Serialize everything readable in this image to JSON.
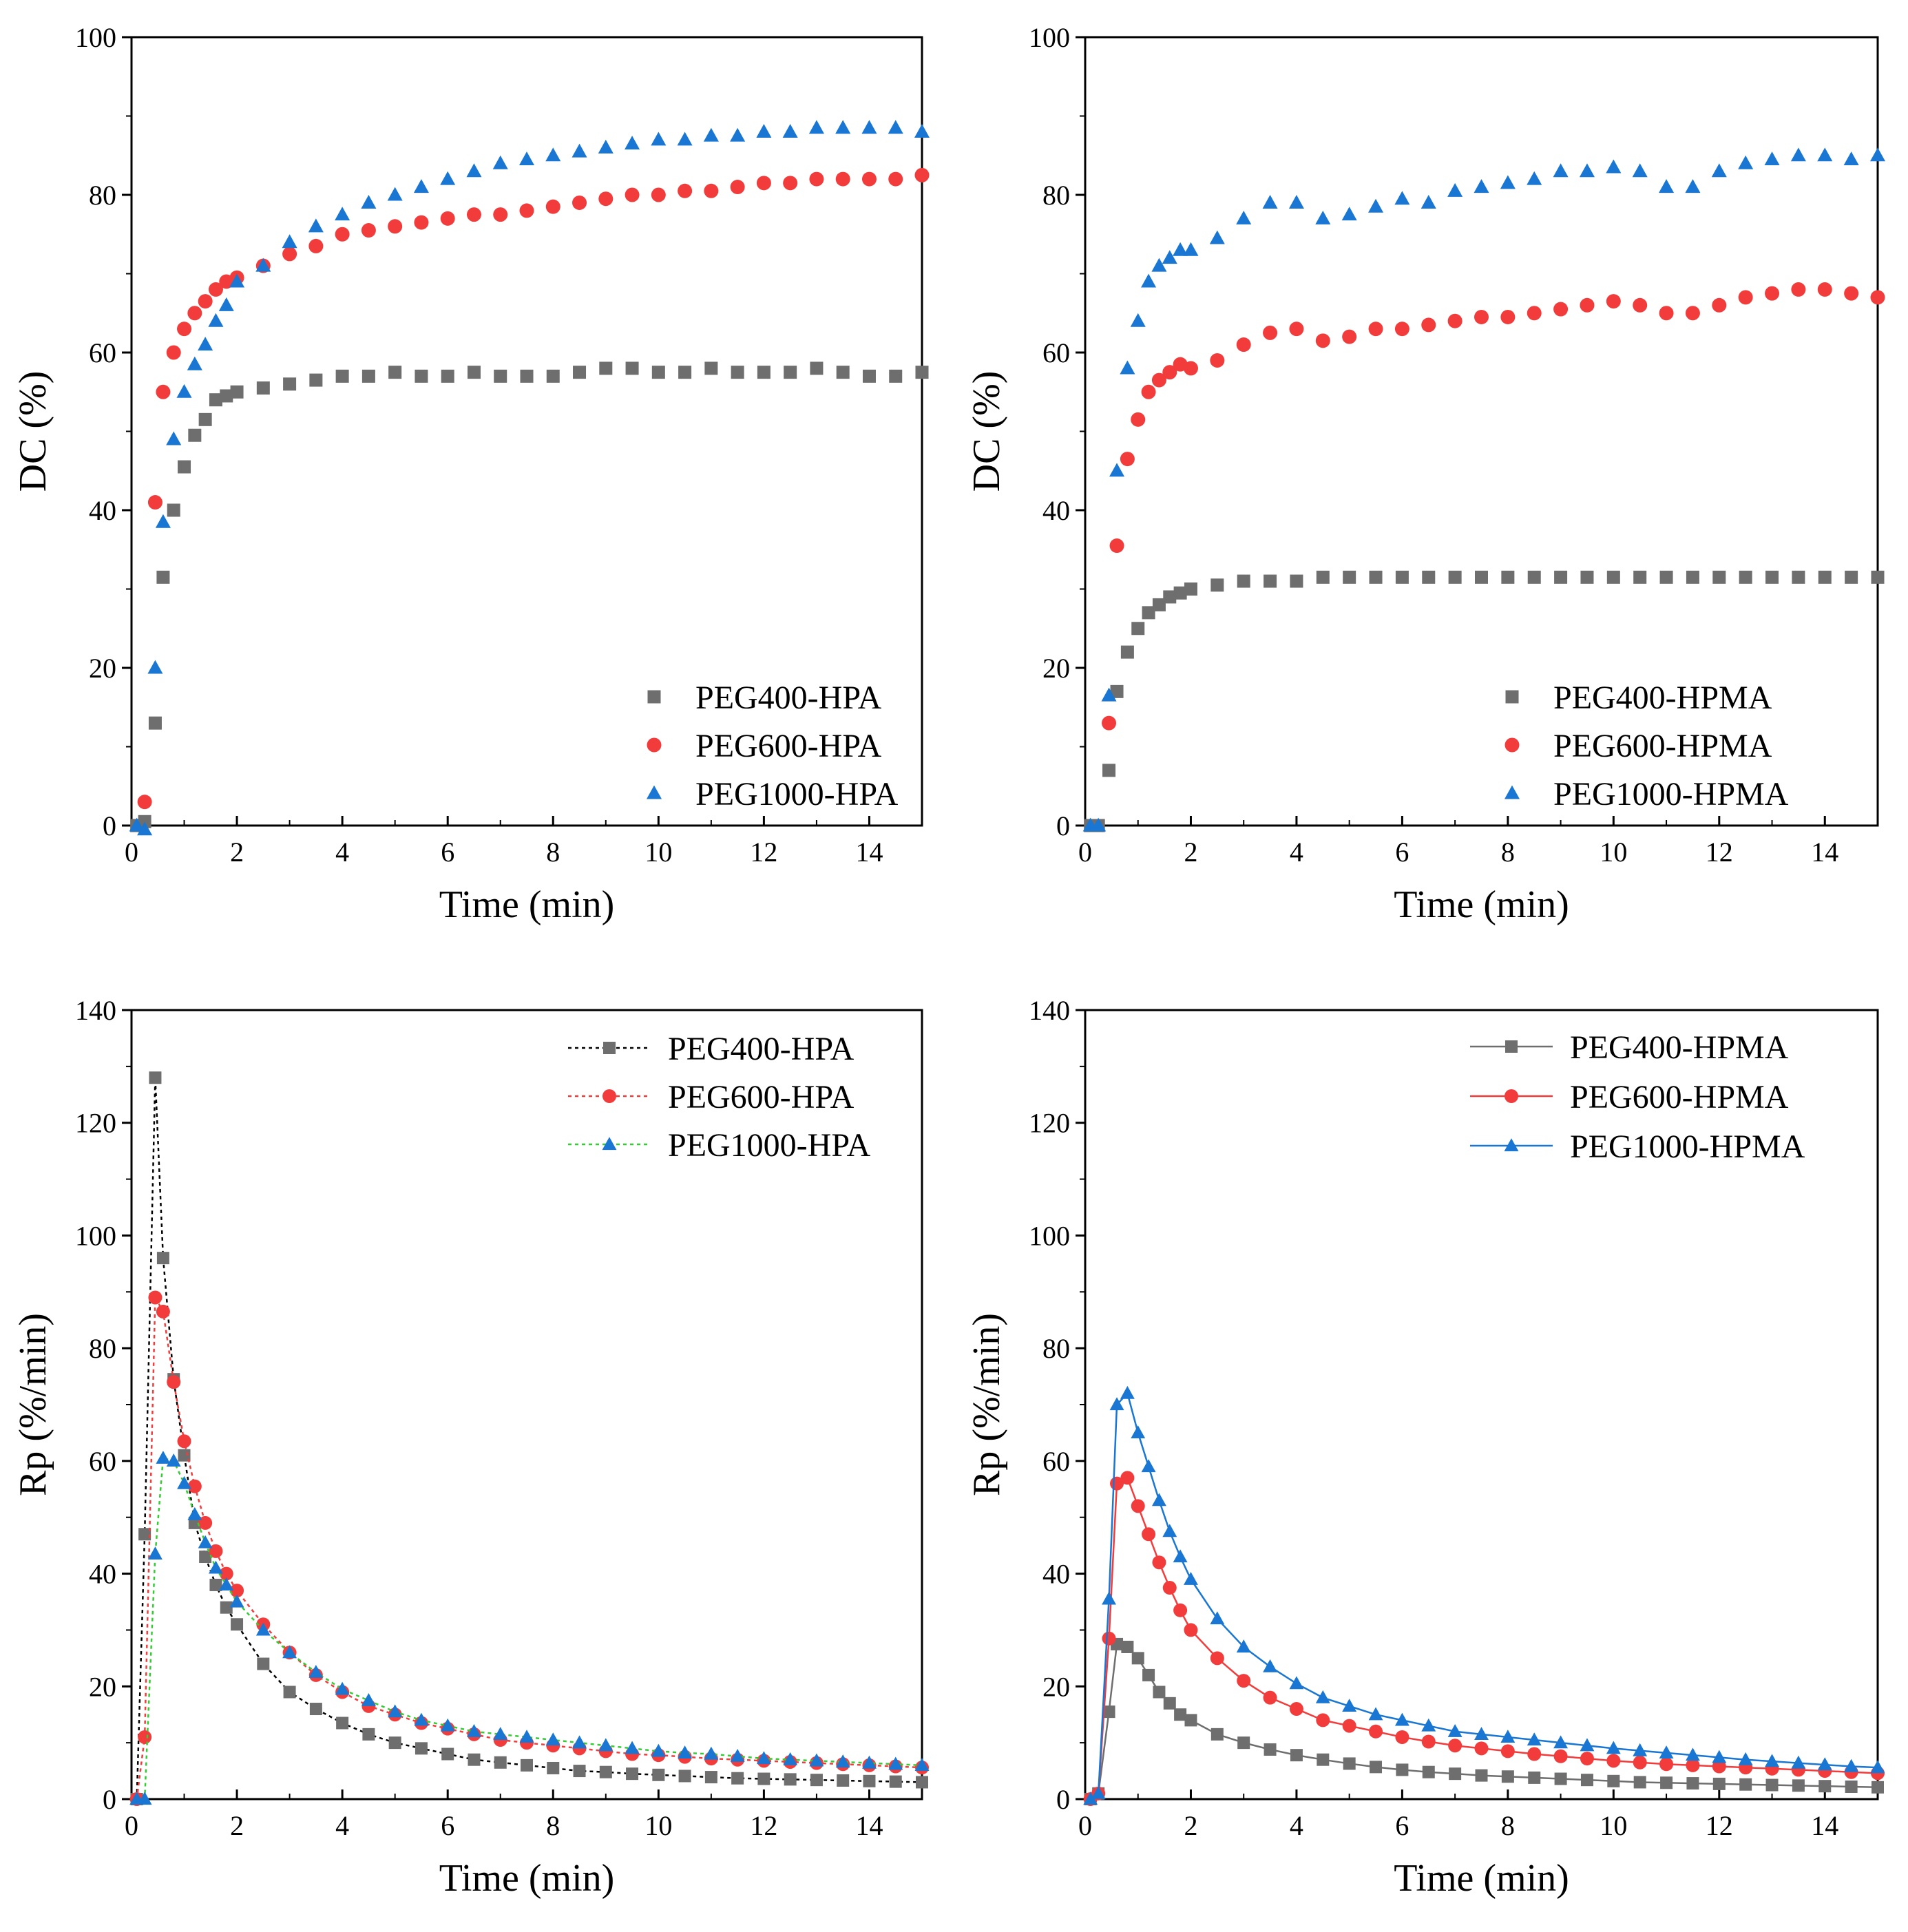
{
  "colors": {
    "peg400": "#6e6e6e",
    "peg600": "#f23c3c",
    "peg1000": "#1976d2",
    "peg1000_line_tl": "#33cc33",
    "axis": "#000000"
  },
  "chart_data": [
    {
      "id": "dc-hpa",
      "type": "scatter",
      "xlabel": "Time (min)",
      "ylabel": "DC (%)",
      "xlim": [
        0,
        15
      ],
      "ylim": [
        0,
        100
      ],
      "xticks": [
        0,
        2,
        4,
        6,
        8,
        10,
        12,
        14
      ],
      "yticks": [
        0,
        20,
        40,
        60,
        80,
        100
      ],
      "legend_position": "bottom-right",
      "series": [
        {
          "name": "PEG400-HPA",
          "marker": "square",
          "color": "#6e6e6e",
          "x": [
            0.1,
            0.25,
            0.45,
            0.6,
            0.8,
            1.0,
            1.2,
            1.4,
            1.6,
            1.8,
            2,
            2.5,
            3,
            3.5,
            4,
            4.5,
            5,
            5.5,
            6,
            6.5,
            7,
            7.5,
            8,
            8.5,
            9,
            9.5,
            10,
            10.5,
            11,
            11.5,
            12,
            12.5,
            13,
            13.5,
            14,
            14.5,
            15
          ],
          "y": [
            0,
            0.5,
            13,
            31.5,
            40,
            45.5,
            49.5,
            51.5,
            54,
            54.5,
            55,
            55.5,
            56,
            56.5,
            57,
            57,
            57.5,
            57,
            57,
            57.5,
            57,
            57,
            57,
            57.5,
            58,
            58,
            57.5,
            57.5,
            58,
            57.5,
            57.5,
            57.5,
            58,
            57.5,
            57,
            57,
            57.5
          ]
        },
        {
          "name": "PEG600-HPA",
          "marker": "circle",
          "color": "#f23c3c",
          "x": [
            0.25,
            0.45,
            0.6,
            0.8,
            1.0,
            1.2,
            1.4,
            1.6,
            1.8,
            2,
            2.5,
            3,
            3.5,
            4,
            4.5,
            5,
            5.5,
            6,
            6.5,
            7,
            7.5,
            8,
            8.5,
            9,
            9.5,
            10,
            10.5,
            11,
            11.5,
            12,
            12.5,
            13,
            13.5,
            14,
            14.5,
            15
          ],
          "y": [
            3,
            41,
            55,
            60,
            63,
            65,
            66.5,
            68,
            69,
            69.5,
            71,
            72.5,
            73.5,
            75,
            75.5,
            76,
            76.5,
            77,
            77.5,
            77.5,
            78,
            78.5,
            79,
            79.5,
            80,
            80,
            80.5,
            80.5,
            81,
            81.5,
            81.5,
            82,
            82,
            82,
            82,
            82.5
          ]
        },
        {
          "name": "PEG1000-HPA",
          "marker": "triangle",
          "color": "#1976d2",
          "x": [
            0.1,
            0.25,
            0.45,
            0.6,
            0.8,
            1.0,
            1.2,
            1.4,
            1.6,
            1.8,
            2,
            2.5,
            3,
            3.5,
            4,
            4.5,
            5,
            5.5,
            6,
            6.5,
            7,
            7.5,
            8,
            8.5,
            9,
            9.5,
            10,
            10.5,
            11,
            11.5,
            12,
            12.5,
            13,
            13.5,
            14,
            14.5,
            15
          ],
          "y": [
            0,
            -0.5,
            20,
            38.5,
            49,
            55,
            58.5,
            61,
            64,
            66,
            69,
            71,
            74,
            76,
            77.5,
            79,
            80,
            81,
            82,
            83,
            84,
            84.5,
            85,
            85.5,
            86,
            86.5,
            87,
            87,
            87.5,
            87.5,
            88,
            88,
            88.5,
            88.5,
            88.5,
            88.5,
            88
          ]
        }
      ]
    },
    {
      "id": "dc-hpma",
      "type": "scatter",
      "xlabel": "Time (min)",
      "ylabel": "DC (%)",
      "xlim": [
        0,
        15
      ],
      "ylim": [
        0,
        100
      ],
      "xticks": [
        0,
        2,
        4,
        6,
        8,
        10,
        12,
        14
      ],
      "yticks": [
        0,
        20,
        40,
        60,
        80,
        100
      ],
      "legend_position": "bottom-right",
      "series": [
        {
          "name": "PEG400-HPMA",
          "marker": "square",
          "color": "#6e6e6e",
          "x": [
            0.1,
            0.25,
            0.45,
            0.6,
            0.8,
            1.0,
            1.2,
            1.4,
            1.6,
            1.8,
            2,
            2.5,
            3,
            3.5,
            4,
            4.5,
            5,
            5.5,
            6,
            6.5,
            7,
            7.5,
            8,
            8.5,
            9,
            9.5,
            10,
            10.5,
            11,
            11.5,
            12,
            12.5,
            13,
            13.5,
            14,
            14.5,
            15
          ],
          "y": [
            0,
            0,
            7,
            17,
            22,
            25,
            27,
            28,
            29,
            29.5,
            30,
            30.5,
            31,
            31,
            31,
            31.5,
            31.5,
            31.5,
            31.5,
            31.5,
            31.5,
            31.5,
            31.5,
            31.5,
            31.5,
            31.5,
            31.5,
            31.5,
            31.5,
            31.5,
            31.5,
            31.5,
            31.5,
            31.5,
            31.5,
            31.5,
            31.5
          ]
        },
        {
          "name": "PEG600-HPMA",
          "marker": "circle",
          "color": "#f23c3c",
          "x": [
            0.45,
            0.6,
            0.8,
            1.0,
            1.2,
            1.4,
            1.6,
            1.8,
            2,
            2.5,
            3,
            3.5,
            4,
            4.5,
            5,
            5.5,
            6,
            6.5,
            7,
            7.5,
            8,
            8.5,
            9,
            9.5,
            10,
            10.5,
            11,
            11.5,
            12,
            12.5,
            13,
            13.5,
            14,
            14.5,
            15
          ],
          "y": [
            13,
            35.5,
            46.5,
            51.5,
            55,
            56.5,
            57.5,
            58.5,
            58,
            59,
            61,
            62.5,
            63,
            61.5,
            62,
            63,
            63,
            63.5,
            64,
            64.5,
            64.5,
            65,
            65.5,
            66,
            66.5,
            66,
            65,
            65,
            66,
            67,
            67.5,
            68,
            68,
            67.5,
            67
          ]
        },
        {
          "name": "PEG1000-HPMA",
          "marker": "triangle",
          "color": "#1976d2",
          "x": [
            0.1,
            0.25,
            0.45,
            0.6,
            0.8,
            1.0,
            1.2,
            1.4,
            1.6,
            1.8,
            2,
            2.5,
            3,
            3.5,
            4,
            4.5,
            5,
            5.5,
            6,
            6.5,
            7,
            7.5,
            8,
            8.5,
            9,
            9.5,
            10,
            10.5,
            11,
            11.5,
            12,
            12.5,
            13,
            13.5,
            14,
            14.5,
            15
          ],
          "y": [
            0,
            0,
            16.5,
            45,
            58,
            64,
            69,
            71,
            72,
            73,
            73,
            74.5,
            77,
            79,
            79,
            77,
            77.5,
            78.5,
            79.5,
            79,
            80.5,
            81,
            81.5,
            82,
            83,
            83,
            83.5,
            83,
            81,
            81,
            83,
            84,
            84.5,
            85,
            85,
            84.5,
            85
          ]
        }
      ]
    },
    {
      "id": "rp-hpa",
      "type": "line",
      "xlabel": "Time (min)",
      "ylabel": "Rp (%/min)",
      "xlim": [
        0,
        15
      ],
      "ylim": [
        0,
        140
      ],
      "xticks": [
        0,
        2,
        4,
        6,
        8,
        10,
        12,
        14
      ],
      "yticks": [
        0,
        20,
        40,
        60,
        80,
        100,
        120,
        140
      ],
      "legend_position": "top-right",
      "series": [
        {
          "name": "PEG400-HPA",
          "marker": "square",
          "color": "#6e6e6e",
          "line_color": "#000000",
          "x": [
            0.1,
            0.25,
            0.45,
            0.6,
            0.8,
            1.0,
            1.2,
            1.4,
            1.6,
            1.8,
            2,
            2.5,
            3,
            3.5,
            4,
            4.5,
            5,
            5.5,
            6,
            6.5,
            7,
            7.5,
            8,
            8.5,
            9,
            9.5,
            10,
            10.5,
            11,
            11.5,
            12,
            12.5,
            13,
            13.5,
            14,
            14.5,
            15
          ],
          "y": [
            0,
            47,
            128,
            96,
            74.5,
            61,
            49,
            43,
            38,
            34,
            31,
            24,
            19,
            16,
            13.5,
            11.5,
            10,
            9,
            8,
            7,
            6.5,
            6,
            5.5,
            5,
            4.8,
            4.5,
            4.3,
            4.1,
            3.9,
            3.7,
            3.6,
            3.5,
            3.4,
            3.3,
            3.2,
            3.1,
            3
          ]
        },
        {
          "name": "PEG600-HPA",
          "marker": "circle",
          "color": "#f23c3c",
          "line_color": "#f23c3c",
          "x": [
            0.1,
            0.25,
            0.45,
            0.6,
            0.8,
            1.0,
            1.2,
            1.4,
            1.6,
            1.8,
            2,
            2.5,
            3,
            3.5,
            4,
            4.5,
            5,
            5.5,
            6,
            6.5,
            7,
            7.5,
            8,
            8.5,
            9,
            9.5,
            10,
            10.5,
            11,
            11.5,
            12,
            12.5,
            13,
            13.5,
            14,
            14.5,
            15
          ],
          "y": [
            0,
            11,
            89,
            86.5,
            74,
            63.5,
            55.5,
            49,
            44,
            40,
            37,
            31,
            26,
            22,
            19,
            16.5,
            15,
            13.5,
            12.5,
            11.5,
            10.5,
            10,
            9.5,
            9,
            8.5,
            8,
            7.8,
            7.5,
            7.2,
            7,
            6.8,
            6.6,
            6.4,
            6.2,
            6,
            5.8,
            5.6
          ]
        },
        {
          "name": "PEG1000-HPA",
          "marker": "triangle",
          "color": "#1976d2",
          "line_color": "#33cc33",
          "x": [
            0.1,
            0.25,
            0.45,
            0.6,
            0.8,
            1.0,
            1.2,
            1.4,
            1.6,
            1.8,
            2,
            2.5,
            3,
            3.5,
            4,
            4.5,
            5,
            5.5,
            6,
            6.5,
            7,
            7.5,
            8,
            8.5,
            9,
            9.5,
            10,
            10.5,
            11,
            11.5,
            12,
            12.5,
            13,
            13.5,
            14,
            14.5,
            15
          ],
          "y": [
            0,
            0,
            43.5,
            60.5,
            60,
            56,
            50.5,
            45.5,
            41,
            38,
            35,
            30,
            26,
            22.5,
            19.5,
            17.5,
            15.5,
            14,
            13,
            12,
            11.5,
            11,
            10.5,
            10,
            9.5,
            9,
            8.5,
            8.2,
            8,
            7.6,
            7.2,
            7,
            6.8,
            6.6,
            6.4,
            6.2,
            6
          ]
        }
      ]
    },
    {
      "id": "rp-hpma",
      "type": "line",
      "xlabel": "Time (min)",
      "ylabel": "Rp (%/min)",
      "xlim": [
        0,
        15
      ],
      "ylim": [
        0,
        140
      ],
      "xticks": [
        0,
        2,
        4,
        6,
        8,
        10,
        12,
        14
      ],
      "yticks": [
        0,
        20,
        40,
        60,
        80,
        100,
        120,
        140
      ],
      "legend_position": "top-right",
      "series": [
        {
          "name": "PEG400-HPMA",
          "marker": "square",
          "color": "#6e6e6e",
          "line_color": "#6e6e6e",
          "x": [
            0.1,
            0.25,
            0.45,
            0.6,
            0.8,
            1.0,
            1.2,
            1.4,
            1.6,
            1.8,
            2,
            2.5,
            3,
            3.5,
            4,
            4.5,
            5,
            5.5,
            6,
            6.5,
            7,
            7.5,
            8,
            8.5,
            9,
            9.5,
            10,
            10.5,
            11,
            11.5,
            12,
            12.5,
            13,
            13.5,
            14,
            14.5,
            15
          ],
          "y": [
            0,
            1,
            15.5,
            27.5,
            27,
            25,
            22,
            19,
            17,
            15,
            14,
            11.5,
            10,
            8.8,
            7.8,
            7,
            6.3,
            5.7,
            5.2,
            4.8,
            4.5,
            4.2,
            4,
            3.8,
            3.6,
            3.4,
            3.2,
            3,
            2.9,
            2.8,
            2.7,
            2.6,
            2.5,
            2.4,
            2.3,
            2.2,
            2.1
          ]
        },
        {
          "name": "PEG600-HPMA",
          "marker": "circle",
          "color": "#f23c3c",
          "line_color": "#f23c3c",
          "x": [
            0.1,
            0.25,
            0.45,
            0.6,
            0.8,
            1.0,
            1.2,
            1.4,
            1.6,
            1.8,
            2,
            2.5,
            3,
            3.5,
            4,
            4.5,
            5,
            5.5,
            6,
            6.5,
            7,
            7.5,
            8,
            8.5,
            9,
            9.5,
            10,
            10.5,
            11,
            11.5,
            12,
            12.5,
            13,
            13.5,
            14,
            14.5,
            15
          ],
          "y": [
            0,
            1,
            28.5,
            56,
            57,
            52,
            47,
            42,
            37.5,
            33.5,
            30,
            25,
            21,
            18,
            16,
            14,
            13,
            12,
            11,
            10.2,
            9.5,
            9,
            8.5,
            8,
            7.6,
            7.2,
            6.8,
            6.5,
            6.2,
            6,
            5.8,
            5.6,
            5.4,
            5.2,
            5,
            4.8,
            4.6
          ]
        },
        {
          "name": "PEG1000-HPMA",
          "marker": "triangle",
          "color": "#1976d2",
          "line_color": "#1976d2",
          "x": [
            0.1,
            0.25,
            0.45,
            0.6,
            0.8,
            1.0,
            1.2,
            1.4,
            1.6,
            1.8,
            2,
            2.5,
            3,
            3.5,
            4,
            4.5,
            5,
            5.5,
            6,
            6.5,
            7,
            7.5,
            8,
            8.5,
            9,
            9.5,
            10,
            10.5,
            11,
            11.5,
            12,
            12.5,
            13,
            13.5,
            14,
            14.5,
            15
          ],
          "y": [
            0,
            1,
            35.5,
            70,
            72,
            65,
            59,
            53,
            47.5,
            43,
            39,
            32,
            27,
            23.5,
            20.5,
            18,
            16.5,
            15,
            14,
            13,
            12,
            11.5,
            11,
            10.5,
            10,
            9.5,
            9,
            8.6,
            8.2,
            7.8,
            7.4,
            7,
            6.7,
            6.4,
            6.1,
            5.8,
            5.6
          ]
        }
      ]
    }
  ]
}
